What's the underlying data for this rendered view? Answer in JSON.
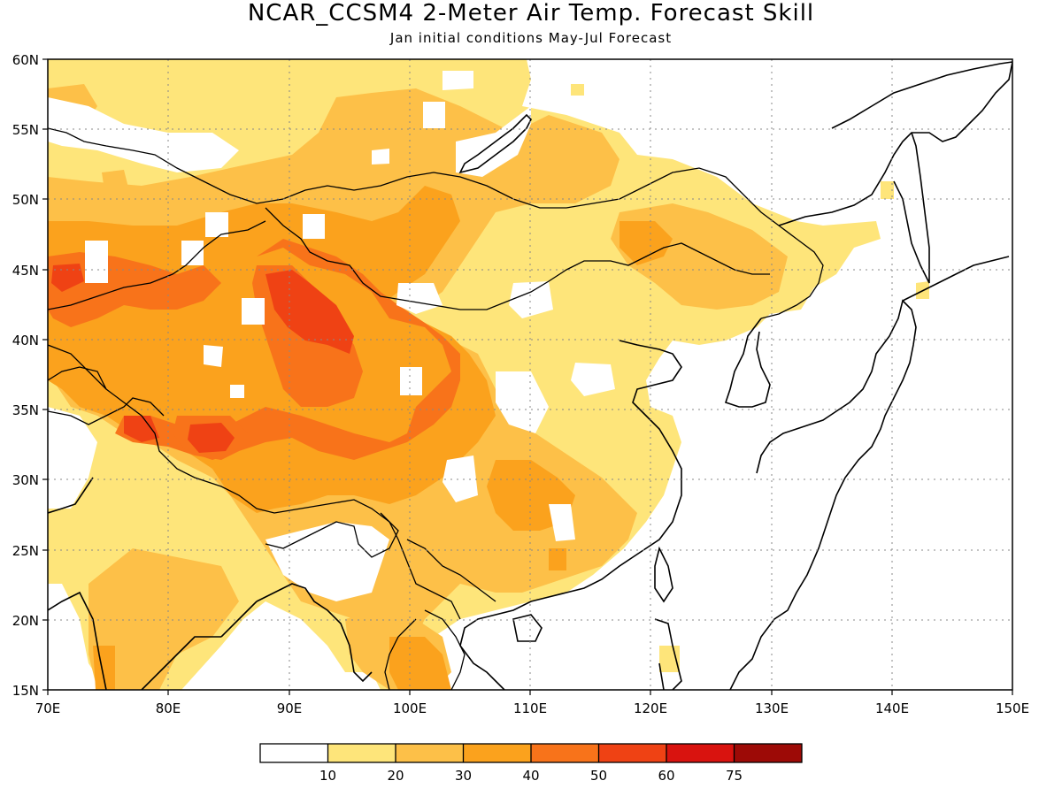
{
  "title": "NCAR_CCSM4 2-Meter Air Temp. Forecast Skill",
  "subtitle": "Jan initial conditions  May-Jul Forecast",
  "map": {
    "lon_range": [
      70,
      150
    ],
    "lat_range": [
      15,
      60
    ],
    "lon_ticks": [
      "70E",
      "80E",
      "90E",
      "100E",
      "110E",
      "120E",
      "130E",
      "140E",
      "150E"
    ],
    "lat_ticks": [
      "15N",
      "20N",
      "25N",
      "30N",
      "35N",
      "40N",
      "45N",
      "50N",
      "55N",
      "60N"
    ],
    "gridlines": "dotted"
  },
  "colorbar": {
    "labels": [
      "10",
      "20",
      "30",
      "40",
      "50",
      "60",
      "75"
    ],
    "colors": [
      "#ffffff",
      "#fee57a",
      "#fdc048",
      "#fba21d",
      "#f8731a",
      "#ef4214",
      "#d9130f",
      "#9d0a06"
    ]
  }
}
